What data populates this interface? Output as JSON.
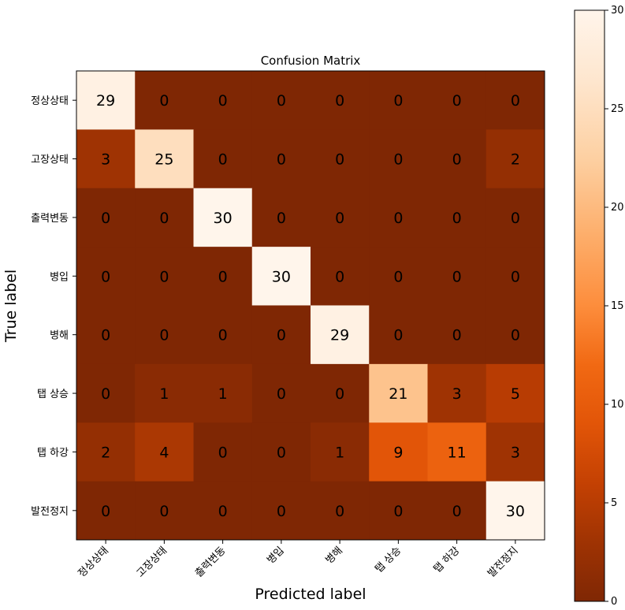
{
  "chart_data": {
    "type": "heatmap",
    "title": "Confusion Matrix",
    "xlabel": "Predicted label",
    "ylabel": "True label",
    "x_categories": [
      "정상상태",
      "고장상태",
      "출력변동",
      "병입",
      "병해",
      "탭 상승",
      "탭 하강",
      "발전정지"
    ],
    "y_categories": [
      "정상상태",
      "고장상태",
      "출력변동",
      "병입",
      "병해",
      "탭 상승",
      "탭 하강",
      "발전정지"
    ],
    "values": [
      [
        29,
        0,
        0,
        0,
        0,
        0,
        0,
        0
      ],
      [
        3,
        25,
        0,
        0,
        0,
        0,
        0,
        2
      ],
      [
        0,
        0,
        30,
        0,
        0,
        0,
        0,
        0
      ],
      [
        0,
        0,
        0,
        30,
        0,
        0,
        0,
        0
      ],
      [
        0,
        0,
        0,
        0,
        29,
        0,
        0,
        0
      ],
      [
        0,
        1,
        1,
        0,
        0,
        21,
        3,
        5
      ],
      [
        2,
        4,
        0,
        0,
        1,
        9,
        11,
        3
      ],
      [
        0,
        0,
        0,
        0,
        0,
        0,
        0,
        30
      ]
    ],
    "colormap": "Oranges_r",
    "colorbar": {
      "range": [
        0,
        30
      ],
      "ticks": [
        0,
        5,
        10,
        15,
        20,
        25,
        30
      ]
    }
  }
}
